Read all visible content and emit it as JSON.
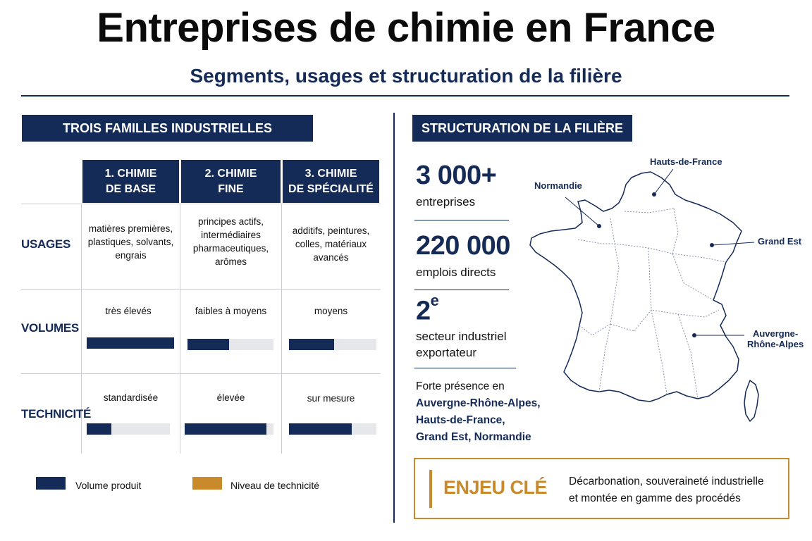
{
  "header": {
    "title": "Entreprises de chimie en France",
    "subtitle": "Segments, usages et structuration de la filière"
  },
  "left_panel": {
    "banner": "TROIS FAMILLES INDUSTRIELLES",
    "columns": [
      {
        "line1": "1. CHIMIE",
        "line2": "DE BASE"
      },
      {
        "line1": "2. CHIMIE",
        "line2": "FINE"
      },
      {
        "line1": "3. CHIMIE",
        "line2": "DE SPÉCIALITÉ"
      }
    ],
    "rows": {
      "usages": {
        "label": "USAGES",
        "cells": [
          "matières premières,\nplastiques, solvants,\nengrais",
          "principes actifs,\nintermédiaires\npharmaceutiques,\narômes",
          "additifs, peintures,\ncolles, matériaux\navancés"
        ]
      },
      "volumes": {
        "label": "VOLUMES",
        "cells": [
          "très élevés",
          "faibles à moyens",
          "moyens"
        ],
        "levels": [
          1.0,
          0.48,
          0.52
        ]
      },
      "technicite": {
        "label": "TECHNICITÉ",
        "cells": [
          "standardisée",
          "élevée",
          "sur mesure"
        ],
        "levels": [
          0.3,
          0.92,
          0.72
        ]
      }
    },
    "legend": [
      {
        "label": "Volume produit",
        "color": "#142a57"
      },
      {
        "label": "Niveau de technicité",
        "color": "#c98a2b"
      }
    ]
  },
  "right_panel": {
    "banner": "STRUCTURATION DE LA FILIÈRE",
    "stats": [
      {
        "value": "3 000+",
        "label": "entreprises"
      },
      {
        "value": "220 000",
        "label": "emplois directs"
      },
      {
        "value": "2",
        "sup": "e",
        "label_line1": "secteur industriel",
        "label_line2": "exportateur"
      }
    ],
    "presence": {
      "intro": "Forte présence en",
      "regions": [
        "Auvergne-Rhône-Alpes,",
        "Hauts-de-France,",
        "Grand Est, Normandie"
      ]
    },
    "map_labels": {
      "hauts_de_france": "Hauts-de-France",
      "normandie": "Normandie",
      "grand_est": "Grand Est",
      "auvergne_line1": "Auvergne-",
      "auvergne_line2": "Rhône-Alpes"
    },
    "enjeu": {
      "label": "ENJEU CLÉ",
      "line1": "Décarbonation, souveraineté industrielle",
      "line2": "et montée en gamme des procédés"
    }
  },
  "colors": {
    "navy": "#142a57",
    "gold": "#c98a2b",
    "track": "#e6e7ea"
  }
}
